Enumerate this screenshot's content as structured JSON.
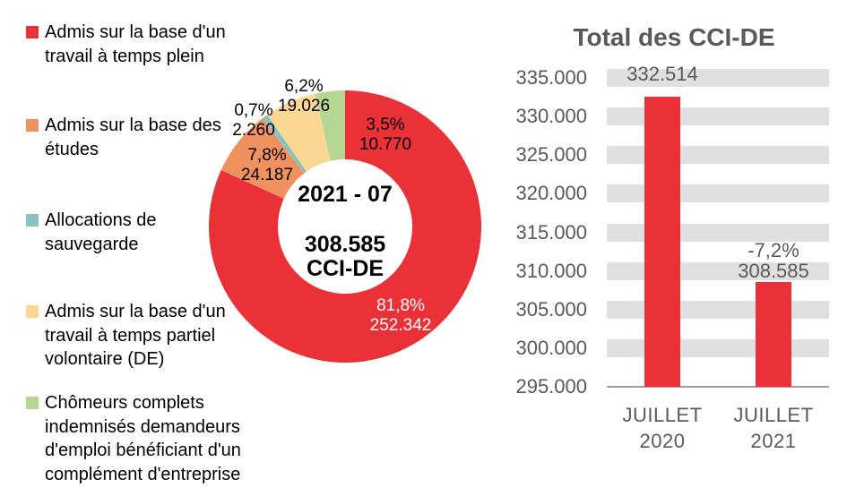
{
  "chart_data": [
    {
      "type": "pie",
      "hole": true,
      "center": {
        "period": "2021 - 07",
        "total": "308.585",
        "unit": "CCI-DE"
      },
      "slices": [
        {
          "legend": "Admis sur la base d'un\ntravail à temps plein",
          "pct": 81.8,
          "value": 252342,
          "pct_label": "81,8%",
          "value_label": "252.342",
          "color": "#e93137",
          "label_color": "#ffffff"
        },
        {
          "legend": "Admis sur la base des\nétudes",
          "pct": 7.8,
          "value": 24187,
          "pct_label": "7,8%",
          "value_label": "24.187",
          "color": "#f0925f",
          "label_color": "#000000"
        },
        {
          "legend": "Allocations de\nsauvegarde",
          "pct": 0.7,
          "value": 2260,
          "pct_label": "0,7%",
          "value_label": "2.260",
          "color": "#89c3bd",
          "label_color": "#000000"
        },
        {
          "legend": "Admis sur la base d'un\ntravail à temps partiel\nvolontaire (DE)",
          "pct": 6.2,
          "value": 19026,
          "pct_label": "6,2%",
          "value_label": "19.026",
          "color": "#fad893",
          "label_color": "#000000"
        },
        {
          "legend": "Chômeurs complets\nindemnisés demandeurs\nd'emploi bénéficiant d'un\ncomplément d'entreprise",
          "pct": 3.5,
          "value": 10770,
          "pct_label": "3,5%",
          "value_label": "10.770",
          "color": "#b6d693",
          "label_color": "#000000"
        }
      ],
      "legend_position": "left",
      "start_angle": "top-clockwise"
    },
    {
      "type": "bar",
      "title": "Total des CCI-DE",
      "categories": [
        "JUILLET\n2020",
        "JUILLET\n2021"
      ],
      "values": [
        332514,
        308585
      ],
      "bar_labels": [
        "332.514",
        "-7,2%\n308.585"
      ],
      "ylim": [
        295000,
        335000
      ],
      "ytick_step": 5000,
      "ytick_labels": [
        "295.000",
        "300.000",
        "305.000",
        "310.000",
        "315.000",
        "320.000",
        "325.000",
        "330.000",
        "335.000"
      ],
      "bar_color": "#e93137",
      "grid": "horizontal-bands",
      "legend_position": "none"
    }
  ],
  "colors": {
    "accent_red": "#e93137",
    "grid_band": "#e0e0e0",
    "axis_line": "#a0a0a0",
    "chart_text": "#595959",
    "label_text": "#000000"
  }
}
